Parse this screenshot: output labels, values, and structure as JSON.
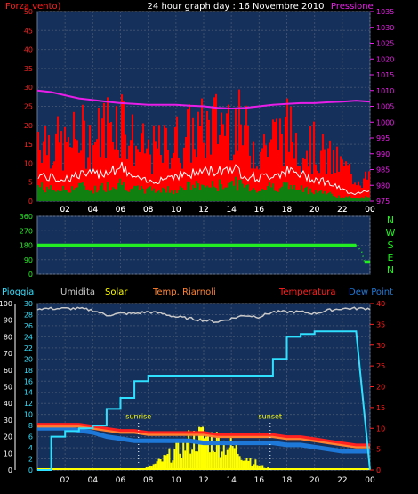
{
  "header": {
    "left_label": "Forza vento)",
    "title": "24 hour graph day : 16 Novembre 2010",
    "right_label": "Pressione"
  },
  "colors": {
    "background": "#000000",
    "plot_bg": "#15305a",
    "grid": "#3c4f6e",
    "wind_gust": "#ff0000",
    "wind_avg": "#ffffff",
    "wind_low": "#108010",
    "pressure": "#e81ee8",
    "direction": "#22ee22",
    "humidity": "#c8c8c8",
    "solar": "#ffff00",
    "temp_riarnoli": "#ff8030",
    "temperature": "#ff2020",
    "dew_point": "#1e78d8",
    "rain": "#30e0ff"
  },
  "chart_data": [
    {
      "type": "line",
      "name": "wind-and-pressure",
      "x_ticks": [
        "02",
        "04",
        "06",
        "08",
        "10",
        "12",
        "14",
        "16",
        "18",
        "20",
        "22",
        "00"
      ],
      "y_left_ticks": [
        0,
        5,
        10,
        15,
        20,
        25,
        30,
        35,
        40,
        45,
        50
      ],
      "y_left_range": [
        0,
        50
      ],
      "y_right_ticks": [
        975,
        980,
        985,
        990,
        995,
        1000,
        1005,
        1010,
        1015,
        1020,
        1025,
        1030,
        1035
      ],
      "y_right_range": [
        975,
        1035
      ],
      "x_hours": [
        0,
        1,
        2,
        3,
        4,
        5,
        6,
        7,
        8,
        9,
        10,
        11,
        12,
        13,
        14,
        15,
        16,
        17,
        18,
        19,
        20,
        21,
        22,
        23,
        24
      ],
      "series": [
        {
          "name": "Forza vento)",
          "axis": "left",
          "values": [
            20,
            17,
            15,
            19,
            17,
            22,
            25,
            16,
            14,
            15,
            17,
            19,
            20,
            22,
            24,
            19,
            15,
            18,
            20,
            17,
            15,
            12,
            10,
            7,
            6
          ]
        },
        {
          "name": "",
          "axis": "left",
          "values": [
            7,
            6,
            6,
            7,
            7,
            8,
            9,
            6,
            5,
            6,
            7,
            7,
            8,
            8,
            9,
            7,
            6,
            7,
            8,
            7,
            6,
            5,
            3,
            2,
            3
          ]
        },
        {
          "name": "",
          "axis": "left",
          "values": [
            4,
            3,
            3,
            4,
            3,
            4,
            5,
            3,
            3,
            3,
            3,
            4,
            4,
            4,
            5,
            4,
            3,
            4,
            4,
            3,
            3,
            2,
            1,
            1,
            1
          ]
        },
        {
          "name": "Pressione",
          "axis": "right",
          "values": [
            1010,
            1009.5,
            1008.5,
            1007.5,
            1007,
            1006.5,
            1006,
            1005.8,
            1005.5,
            1005.5,
            1005.5,
            1005.2,
            1005,
            1004.5,
            1004.3,
            1004.5,
            1005,
            1005.5,
            1005.8,
            1006,
            1006,
            1006.3,
            1006.5,
            1006.8,
            1006.5
          ]
        }
      ]
    },
    {
      "type": "scatter",
      "name": "wind-direction",
      "x_ticks": [
        "02",
        "04",
        "06",
        "08",
        "10",
        "12",
        "14",
        "16",
        "18",
        "20",
        "22",
        "00"
      ],
      "y_ticks": [
        0,
        90,
        180,
        270,
        360
      ],
      "y_range": [
        0,
        360
      ],
      "compass": [
        "N",
        "W",
        "S",
        "E",
        "N"
      ],
      "points": [
        [
          0,
          180
        ],
        [
          23,
          180
        ],
        [
          23.4,
          140
        ],
        [
          23.6,
          75
        ],
        [
          24,
          75
        ]
      ]
    },
    {
      "type": "line",
      "name": "rain-humidity-temperature",
      "labels": {
        "rain": "Pioggia",
        "humidity": "Umidita",
        "solar": "Solar",
        "temp_riarnoli": "Temp. Riarnoli",
        "temperature": "Temperatura",
        "dew_point": "Dew Point"
      },
      "x_ticks": [
        "02",
        "04",
        "06",
        "08",
        "10",
        "12",
        "14",
        "16",
        "18",
        "20",
        "22",
        "00"
      ],
      "y_left_outer_ticks": [
        0,
        10,
        20,
        30,
        40,
        50,
        60,
        70,
        80,
        90,
        100
      ],
      "y_left_outer_range": [
        0,
        100
      ],
      "y_left_inner_ticks": [
        0,
        2,
        4,
        6,
        8,
        10,
        12,
        14,
        16,
        18,
        20,
        22,
        24,
        26,
        28,
        30
      ],
      "y_left_inner_range": [
        0,
        30
      ],
      "y_right_ticks": [
        0,
        5,
        10,
        15,
        20,
        25,
        30,
        35,
        40
      ],
      "y_right_range": [
        0,
        40
      ],
      "x_hours": [
        0,
        1,
        2,
        3,
        4,
        5,
        6,
        7,
        8,
        9,
        10,
        11,
        12,
        13,
        14,
        15,
        16,
        17,
        18,
        19,
        20,
        21,
        22,
        23,
        24
      ],
      "series": [
        {
          "name": "Umidita",
          "axis": "left_outer",
          "values": [
            97,
            97,
            97,
            97,
            96,
            93,
            94,
            94,
            95,
            94,
            92,
            91,
            90,
            89,
            91,
            93,
            92,
            95,
            95,
            95,
            94,
            96,
            97,
            97,
            97
          ]
        },
        {
          "name": "Temperatura",
          "axis": "right",
          "values": [
            11,
            11,
            11,
            11,
            10.5,
            10,
            9.5,
            9.5,
            9,
            9,
            9,
            9,
            9,
            8.5,
            8.5,
            8.5,
            8.5,
            8.5,
            8,
            8,
            7.5,
            7,
            6.5,
            6,
            6
          ]
        },
        {
          "name": "Temp. Riarnoli",
          "axis": "right",
          "values": [
            10.5,
            10.5,
            10.5,
            10.5,
            10,
            9.5,
            9,
            9,
            8.5,
            8.5,
            8.5,
            8.5,
            8.5,
            8,
            8,
            8,
            8,
            8,
            7.5,
            7.5,
            7,
            6.5,
            6,
            5.5,
            5.5
          ]
        },
        {
          "name": "Dew Point",
          "axis": "right",
          "values": [
            10,
            10,
            10,
            9.5,
            9,
            8,
            7.5,
            7,
            7,
            7,
            7,
            7,
            6.5,
            6.5,
            6.5,
            6.5,
            6.5,
            6.5,
            6,
            6,
            5.5,
            5,
            4.5,
            4.5,
            4.5
          ]
        },
        {
          "name": "Pioggia",
          "axis": "left_inner",
          "values": [
            0,
            6,
            7,
            7.5,
            8,
            11,
            13,
            16,
            17,
            17,
            17,
            17,
            17,
            17,
            17,
            17,
            17,
            20,
            24,
            24.5,
            25,
            25,
            25,
            25,
            0
          ]
        },
        {
          "name": "Solar",
          "axis": "left_inner",
          "values": [
            0,
            0,
            0,
            0,
            0,
            0,
            0,
            0,
            0.5,
            2,
            4,
            6,
            7,
            6,
            5,
            3,
            1,
            0,
            0,
            0,
            0,
            0,
            0,
            0,
            0
          ]
        }
      ],
      "annotations": [
        {
          "text": "sunrise",
          "hour": 7.3
        },
        {
          "text": "sunset",
          "hour": 16.8
        }
      ]
    }
  ]
}
